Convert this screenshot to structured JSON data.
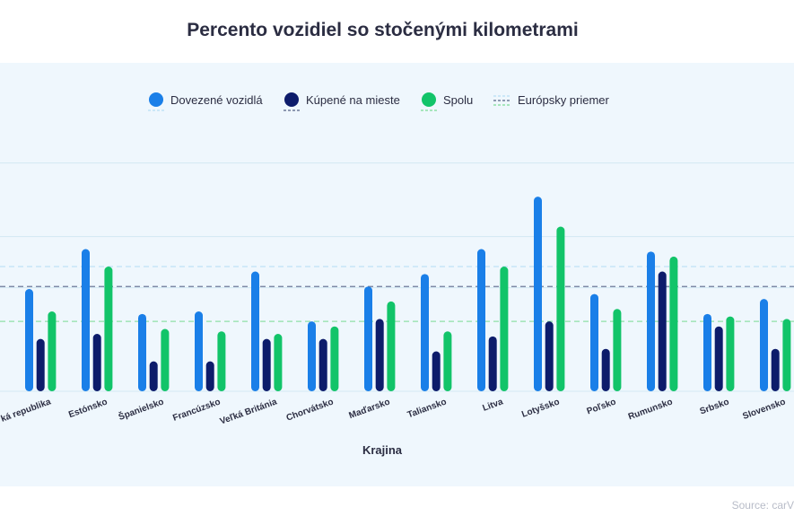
{
  "title": "Percento vozidiel so stočenými kilometrami",
  "source": "Source: carV",
  "chart_data": {
    "type": "bar",
    "title": "Percento vozidiel so stočenými kilometrami",
    "xlabel": "Krajina",
    "ylabel": "",
    "ylim": [
      0,
      9
    ],
    "grid": true,
    "legend_position": "top",
    "categories": [
      "Česká republika",
      "Estónsko",
      "Španielsko",
      "Francúzsko",
      "Veľká Británia",
      "Chorvátsko",
      "Maďarsko",
      "Taliansko",
      "Litva",
      "Lotyšsko",
      "Poľsko",
      "Rumunsko",
      "Srbsko",
      "Slovensko"
    ],
    "visible_category_labels": [
      "ká republika",
      "Estónsko",
      "Španielsko",
      "Francúzsko",
      "Veľká Británia",
      "Chorvátsko",
      "Maďarsko",
      "Taliansko",
      "Litva",
      "Lotyšsko",
      "Poľsko",
      "Rumunsko",
      "Srbsko",
      "Slovensko"
    ],
    "series": [
      {
        "name": "Dovezené vozidlá",
        "color": "#1a7fe8",
        "values": [
          4.1,
          5.7,
          3.1,
          3.2,
          4.8,
          2.8,
          4.2,
          4.7,
          5.7,
          7.8,
          3.9,
          5.6,
          3.1,
          3.7
        ]
      },
      {
        "name": "Kúpené na mieste",
        "color": "#0d1c6b",
        "values": [
          2.1,
          2.3,
          1.2,
          1.2,
          2.1,
          2.1,
          2.9,
          1.6,
          2.2,
          2.8,
          1.7,
          4.8,
          2.6,
          1.7
        ]
      },
      {
        "name": "Spolu",
        "color": "#12c469",
        "values": [
          3.2,
          5.0,
          2.5,
          2.4,
          2.3,
          2.6,
          3.6,
          2.4,
          5.0,
          6.6,
          3.3,
          5.4,
          3.0,
          2.9
        ]
      }
    ],
    "reference_lines": [
      {
        "name": "Európsky priemer",
        "values": [
          5.0,
          4.2,
          2.8
        ],
        "colors": [
          "#bfe3f7",
          "#6e7a99",
          "#8fe0a8"
        ]
      }
    ]
  }
}
